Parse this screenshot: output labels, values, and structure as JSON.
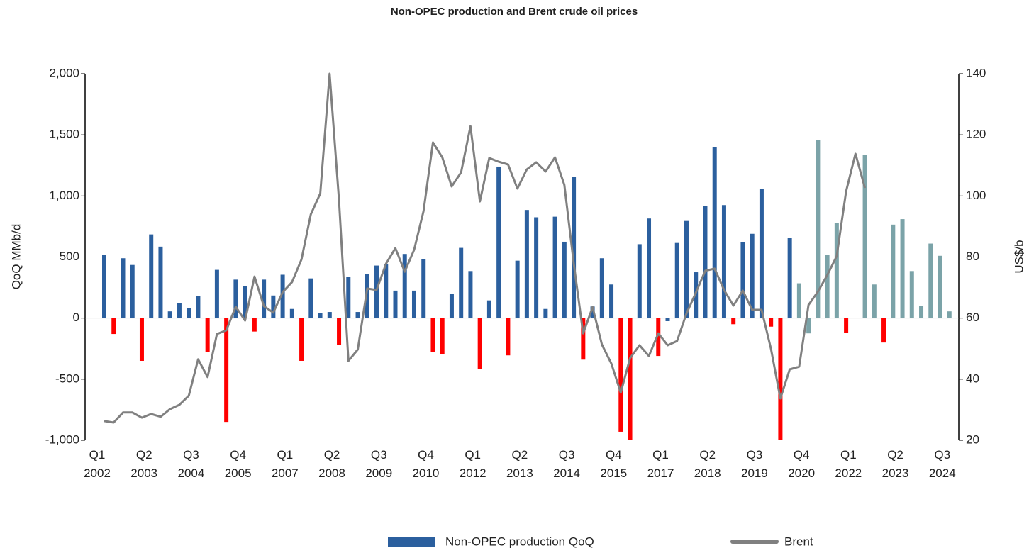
{
  "chart_data": {
    "type": "bar_line",
    "title": "Non-OPEC production and Brent crude oil prices",
    "ylabel": "QoQ MMb/d",
    "y2label": "US$/b",
    "categories": [
      "Q1 2002",
      null,
      null,
      null,
      null,
      "Q2 2003",
      null,
      null,
      null,
      null,
      "Q3 2004",
      null,
      null,
      null,
      null,
      "Q4 2005",
      null,
      null,
      null,
      null,
      "Q1 2007",
      null,
      null,
      null,
      null,
      "Q2 2008",
      null,
      null,
      null,
      null,
      "Q3 2009",
      null,
      null,
      null,
      null,
      "Q4 2010",
      null,
      null,
      null,
      null,
      "Q1 2012",
      null,
      null,
      null,
      null,
      "Q2 2013",
      null,
      null,
      null,
      null,
      "Q3 2014",
      null,
      null,
      null,
      null,
      "Q4 2015",
      null,
      null,
      null,
      null,
      "Q1 2017",
      null,
      null,
      null,
      null,
      "Q2 2018",
      null,
      null,
      null,
      null,
      "Q3 2019",
      null,
      null,
      null,
      null,
      "Q4 2020",
      null,
      null,
      null,
      null,
      "Q1 2022",
      null,
      null,
      null,
      null,
      "Q2 2023",
      null,
      null,
      null,
      null,
      "Q3 2024",
      null
    ],
    "series": [
      {
        "name": "Non-OPEC production QoQ",
        "kind": "bar",
        "color": "#2b5f9e",
        "values": [
          520,
          -130,
          490,
          435,
          -350,
          685,
          585,
          55,
          120,
          80,
          180,
          -280,
          395,
          -850,
          315,
          265,
          -110,
          315,
          185,
          355,
          75,
          -350,
          325,
          40,
          50,
          -220,
          340,
          50,
          360,
          430,
          440,
          225,
          525,
          225,
          480,
          -280,
          -295,
          200,
          575,
          385,
          -415,
          145,
          1240,
          -305,
          470,
          885,
          825,
          75,
          830,
          625,
          1155,
          -340,
          95,
          490,
          275,
          -930,
          -1000,
          605,
          815,
          -310,
          -25,
          615,
          795,
          375,
          920,
          1400,
          925,
          -50,
          620,
          690,
          1060,
          -70,
          -1000,
          655,
          285,
          -125,
          1460,
          515,
          780,
          -120,
          null,
          1335,
          275,
          -200,
          765,
          810,
          385,
          100,
          610,
          510,
          55,
          null
        ],
        "colors": [
          "#2b5f9e",
          "#ff0000",
          "#2b5f9e",
          "#2b5f9e",
          "#ff0000",
          "#2b5f9e",
          "#2b5f9e",
          "#2b5f9e",
          "#2b5f9e",
          "#2b5f9e",
          "#2b5f9e",
          "#ff0000",
          "#2b5f9e",
          "#ff0000",
          "#2b5f9e",
          "#2b5f9e",
          "#ff0000",
          "#2b5f9e",
          "#2b5f9e",
          "#2b5f9e",
          "#2b5f9e",
          "#ff0000",
          "#2b5f9e",
          "#2b5f9e",
          "#2b5f9e",
          "#ff0000",
          "#2b5f9e",
          "#2b5f9e",
          "#2b5f9e",
          "#2b5f9e",
          "#2b5f9e",
          "#2b5f9e",
          "#2b5f9e",
          "#2b5f9e",
          "#2b5f9e",
          "#ff0000",
          "#ff0000",
          "#2b5f9e",
          "#2b5f9e",
          "#2b5f9e",
          "#ff0000",
          "#2b5f9e",
          "#2b5f9e",
          "#ff0000",
          "#2b5f9e",
          "#2b5f9e",
          "#2b5f9e",
          "#2b5f9e",
          "#2b5f9e",
          "#2b5f9e",
          "#2b5f9e",
          "#ff0000",
          "#2b5f9e",
          "#2b5f9e",
          "#2b5f9e",
          "#ff0000",
          "#ff0000",
          "#2b5f9e",
          "#2b5f9e",
          "#ff0000",
          "#2b5f9e",
          "#2b5f9e",
          "#2b5f9e",
          "#2b5f9e",
          "#2b5f9e",
          "#2b5f9e",
          "#2b5f9e",
          "#ff0000",
          "#2b5f9e",
          "#2b5f9e",
          "#2b5f9e",
          "#ff0000",
          "#ff0000",
          "#2b5f9e",
          "#7ba3a8",
          "#7ba3a8",
          "#7ba3a8",
          "#7ba3a8",
          "#7ba3a8",
          "#ff0000",
          "#7ba3a8",
          "#7ba3a8",
          "#7ba3a8",
          "#ff0000",
          "#7ba3a8",
          "#7ba3a8",
          "#7ba3a8",
          "#7ba3a8",
          "#7ba3a8",
          "#7ba3a8",
          "#7ba3a8",
          "#7ba3a8"
        ]
      },
      {
        "name": "Brent",
        "kind": "line",
        "axis": "y2",
        "color": "#808080",
        "values": [
          26.3,
          25.8,
          29.1,
          29.1,
          27.4,
          28.6,
          27.7,
          30.2,
          31.6,
          34.6,
          46.5,
          40.7,
          54.8,
          56.0,
          63.7,
          59.2,
          73.6,
          63.9,
          61.8,
          68.5,
          71.8,
          79.2,
          94.0,
          100.8,
          140,
          98.7,
          46.0,
          49.7,
          69.7,
          69.2,
          77.8,
          82.9,
          75.2,
          82.4,
          95.0,
          117.5,
          112.6,
          103.1,
          107.7,
          122.8,
          98.2,
          112.4,
          111.2,
          110.3,
          102.4,
          108.7,
          111.0,
          108.0,
          112.6,
          103.6,
          77.8,
          55.0,
          63.6,
          51.3,
          45.1,
          35.6,
          46.9,
          51.1,
          47.6,
          55.0,
          51.1,
          52.5,
          61.5,
          68.3,
          75.5,
          76.2,
          69.2,
          64.1,
          69.0,
          62.7,
          62.7,
          49.9,
          33.7,
          43.2,
          44.1,
          64.3,
          68.7,
          74.1,
          80.3,
          101.5,
          113.8,
          102.6,
          null,
          null,
          null,
          null,
          null,
          null,
          null,
          null,
          null,
          null
        ]
      }
    ],
    "ylim": [
      -1000,
      2000
    ],
    "yticks": [
      {
        "value": -1000,
        "label": "-1,000"
      },
      -500,
      0,
      500,
      {
        "value": 1000,
        "label": "1,000"
      },
      {
        "value": 1500,
        "label": "1,500"
      },
      {
        "value": 2000,
        "label": "2,000"
      }
    ],
    "y2lim": [
      20,
      140
    ],
    "y2ticks": [
      20,
      40,
      60,
      80,
      100,
      120,
      140
    ],
    "legend": "bottom"
  }
}
